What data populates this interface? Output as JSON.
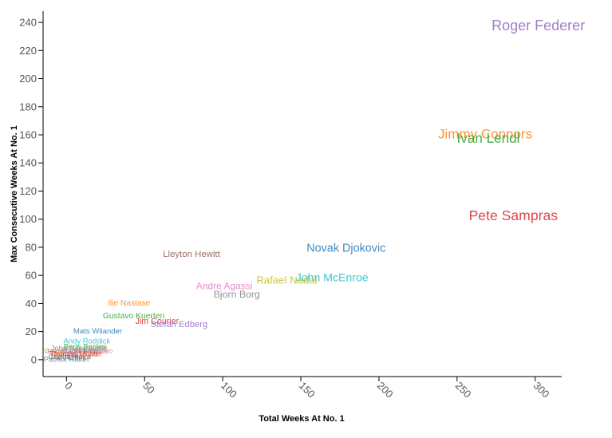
{
  "chart_data": {
    "type": "scatter",
    "title": "",
    "xlabel": "Total Weeks At No. 1",
    "ylabel": "Max Consecutive Weeks At No. 1",
    "xlim": [
      -15,
      317
    ],
    "ylim": [
      -12,
      248
    ],
    "xticks": [
      0,
      50,
      100,
      150,
      200,
      250,
      300
    ],
    "yticks": [
      0,
      20,
      40,
      60,
      80,
      100,
      120,
      140,
      160,
      180,
      200,
      220,
      240
    ],
    "points": [
      {
        "label": "Roger Federer",
        "x": 302,
        "y": 237,
        "color": "#9467bd"
      },
      {
        "label": "Jimmy Connors",
        "x": 268,
        "y": 160,
        "color": "#ff7f0e"
      },
      {
        "label": "Ivan Lendl",
        "x": 270,
        "y": 157,
        "color": "#2ca02c"
      },
      {
        "label": "Pete Sampras",
        "x": 286,
        "y": 102,
        "color": "#d62728"
      },
      {
        "label": "Novak Djokovic",
        "x": 179,
        "y": 79,
        "color": "#1f77b4"
      },
      {
        "label": "John McEnroe",
        "x": 170,
        "y": 58,
        "color": "#17becf"
      },
      {
        "label": "Rafael Nadal",
        "x": 141,
        "y": 56,
        "color": "#bcbd22"
      },
      {
        "label": "Andre Agassi",
        "x": 101,
        "y": 52,
        "color": "#e377c2"
      },
      {
        "label": "Bjorn Borg",
        "x": 109,
        "y": 46,
        "color": "#7f7f7f"
      },
      {
        "label": "Lleyton Hewitt",
        "x": 80,
        "y": 75,
        "color": "#8c564b"
      },
      {
        "label": "Ilie Nastase",
        "x": 40,
        "y": 40,
        "color": "#ff7f0e"
      },
      {
        "label": "Gustavo Kuerten",
        "x": 43,
        "y": 31,
        "color": "#2ca02c"
      },
      {
        "label": "Jim Courier",
        "x": 58,
        "y": 27,
        "color": "#d62728"
      },
      {
        "label": "Stefan Edberg",
        "x": 72,
        "y": 25,
        "color": "#9467bd"
      },
      {
        "label": "Mats Wilander",
        "x": 20,
        "y": 20,
        "color": "#1f77b4"
      },
      {
        "label": "Andy Roddick",
        "x": 13,
        "y": 13,
        "color": "#17becf"
      },
      {
        "label": "Yevgeny Kafelnikov",
        "x": 6,
        "y": 6,
        "color": "#bcbd22"
      },
      {
        "label": "Carlos Moya",
        "x": 2,
        "y": 2,
        "color": "#8c564b"
      },
      {
        "label": "Marcelo Rios",
        "x": 6,
        "y": 4,
        "color": "#ff7f0e"
      },
      {
        "label": "Juan Carlos Ferrero",
        "x": 8,
        "y": 6,
        "color": "#e377c2"
      },
      {
        "label": "Thomas Muster",
        "x": 6,
        "y": 4,
        "color": "#d62728"
      },
      {
        "label": "Marat Safin",
        "x": 9,
        "y": 6,
        "color": "#9467bd"
      },
      {
        "label": "Boris Becker",
        "x": 12,
        "y": 9,
        "color": "#2ca02c"
      },
      {
        "label": "John Newcombe",
        "x": 8,
        "y": 8,
        "color": "#7f7f7f"
      },
      {
        "label": "Pat Rafter",
        "x": 1,
        "y": 1,
        "color": "#1f77b4"
      },
      {
        "label": "Patrick Rafter",
        "x": 0,
        "y": 0,
        "color": "#7f7f7f"
      }
    ]
  }
}
